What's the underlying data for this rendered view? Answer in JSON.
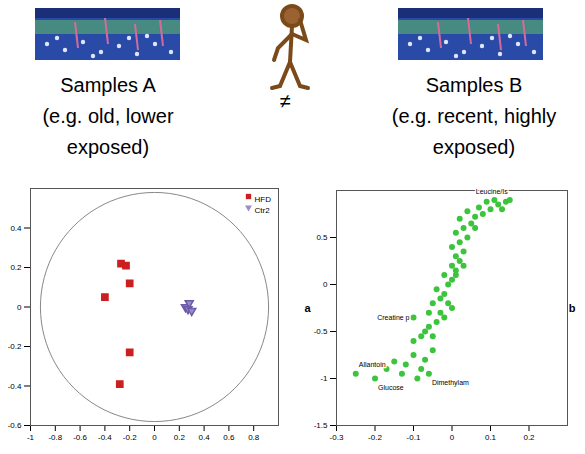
{
  "header": {
    "sample_a": {
      "lines": [
        "Samples A",
        "(e.g. old, lower",
        "exposed)"
      ]
    },
    "relation": "≠",
    "sample_b": {
      "lines": [
        "Samples B",
        "(e.g. recent, highly",
        "exposed)"
      ]
    }
  },
  "chart_data": [
    {
      "type": "scatter",
      "xlim": [
        -1,
        1
      ],
      "xticks": [
        -1,
        -0.8,
        -0.6,
        -0.4,
        -0.2,
        0,
        0.2,
        0.4,
        0.6,
        0.8
      ],
      "ylim": [
        -0.6,
        0.6
      ],
      "yticks": [
        -0.6,
        -0.4,
        -0.2,
        0,
        0.2,
        0.4
      ],
      "ellipse": {
        "rx": 0.92,
        "ry": 0.58
      },
      "legend": "top-right",
      "series": [
        {
          "name": "HFD",
          "color": "#cc1f1f",
          "marker": "square",
          "x": [
            -0.27,
            -0.23,
            -0.2,
            -0.4,
            -0.2,
            -0.28
          ],
          "values": [
            0.22,
            0.21,
            0.12,
            0.05,
            -0.23,
            -0.39
          ]
        },
        {
          "name": "Ctr2",
          "color": "#9a8fc4",
          "marker": "triangle-down",
          "x": [
            0.25,
            0.27,
            0.3,
            0.28
          ],
          "values": [
            0.0,
            -0.01,
            -0.02,
            0.02
          ]
        }
      ]
    },
    {
      "type": "scatter",
      "xlim": [
        -0.3,
        0.3
      ],
      "xticks": [
        -0.3,
        -0.2,
        -0.1,
        0,
        0.1,
        0.2
      ],
      "ylim": [
        -1.5,
        1
      ],
      "yticks": [
        -1.5,
        -1,
        -0.5,
        0,
        0.5
      ],
      "annotations": [
        "a",
        "b"
      ],
      "color": "#3cc43c",
      "x": [
        -0.25,
        -0.2,
        -0.17,
        -0.15,
        -0.13,
        -0.12,
        -0.1,
        -0.09,
        -0.08,
        -0.07,
        -0.06,
        -0.05,
        -0.1,
        -0.08,
        -0.07,
        -0.06,
        -0.05,
        -0.04,
        -0.1,
        -0.06,
        -0.03,
        -0.05,
        -0.03,
        -0.02,
        -0.04,
        -0.01,
        0,
        -0.02,
        0.01,
        0,
        0.02,
        0.01,
        0.03,
        0,
        0.02,
        0.04,
        0.01,
        0.03,
        0.05,
        0.02,
        0.06,
        0.08,
        0.04,
        0.1,
        0.07,
        0.12,
        0.09,
        0.14,
        0.15,
        0.11,
        0.13,
        0.06,
        -0.01,
        0,
        -0.02,
        0.01,
        0.03
      ],
      "values": [
        -0.95,
        -1.0,
        -0.9,
        -0.82,
        -0.95,
        -0.85,
        -0.75,
        -1.0,
        -0.9,
        -0.8,
        -0.95,
        -0.7,
        -0.6,
        -0.55,
        -0.5,
        -0.45,
        -0.55,
        -0.4,
        -0.35,
        -0.3,
        -0.3,
        -0.2,
        -0.15,
        -0.1,
        -0.05,
        0,
        0.05,
        0.1,
        0.15,
        0.2,
        0.25,
        0.3,
        0.35,
        0.4,
        0.45,
        0.5,
        0.55,
        0.6,
        0.65,
        0.7,
        0.72,
        0.75,
        0.78,
        0.8,
        0.82,
        0.85,
        0.88,
        0.88,
        0.9,
        0.9,
        0.8,
        0.6,
        -0.2,
        -0.25,
        -0.35,
        0.1,
        0.2
      ],
      "labels": [
        "Allantoin",
        "Glucose",
        null,
        null,
        null,
        null,
        null,
        null,
        null,
        null,
        "Dimethylam",
        null,
        null,
        null,
        null,
        null,
        null,
        null,
        "Creatine p",
        null,
        null,
        null,
        null,
        null,
        null,
        null,
        null,
        null,
        null,
        null,
        null,
        null,
        null,
        null,
        null,
        null,
        null,
        null,
        null,
        null,
        null,
        null,
        null,
        null,
        null,
        null,
        null,
        null,
        "Leucine/Is",
        null,
        null,
        null,
        null,
        null,
        null,
        null,
        null
      ]
    }
  ]
}
